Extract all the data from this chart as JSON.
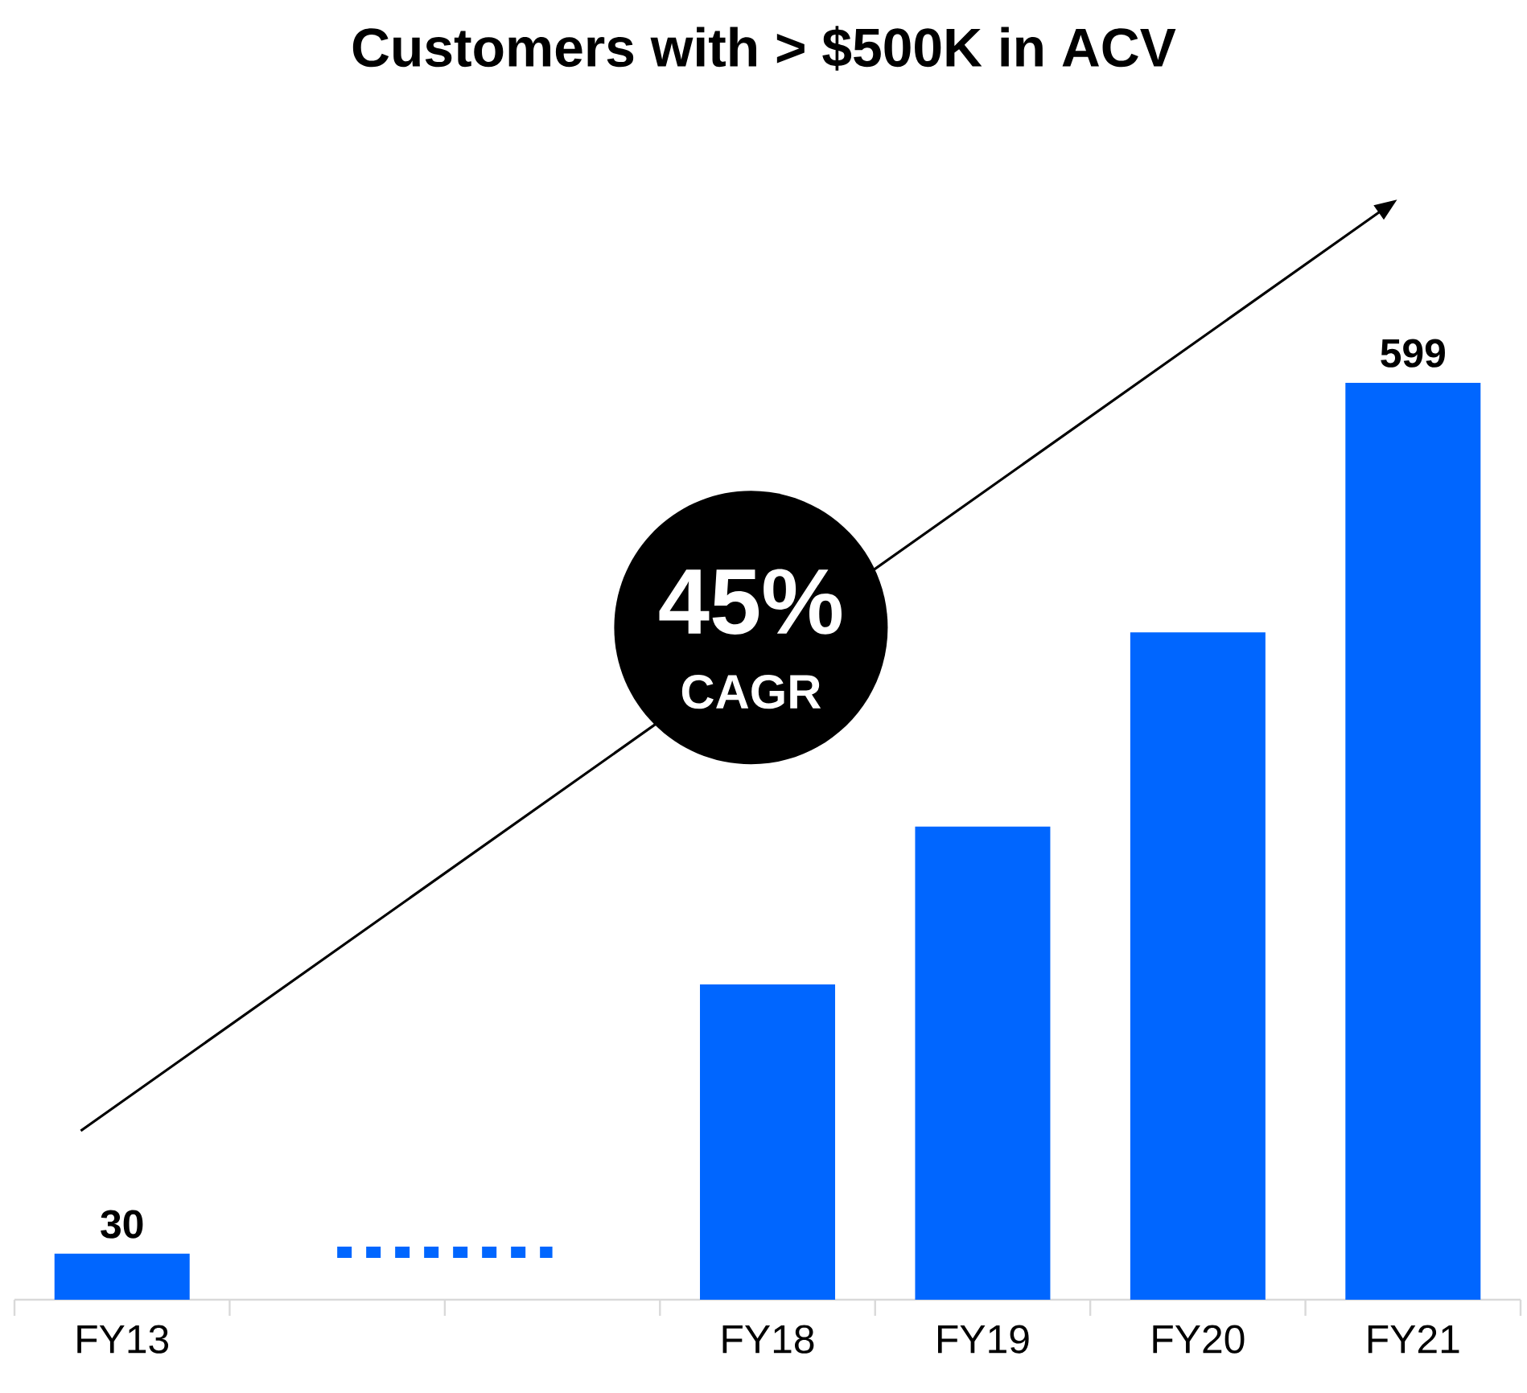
{
  "chart_data": {
    "type": "bar",
    "title": "Customers with > $500K in ACV",
    "categories": [
      "FY13",
      null,
      null,
      "FY18",
      "FY19",
      "FY20",
      "FY21"
    ],
    "series": [
      {
        "color": "#0066ff",
        "values": [
          30,
          null,
          null,
          206,
          309,
          436,
          599
        ],
        "value_labels": [
          "30",
          null,
          null,
          null,
          null,
          null,
          "599"
        ]
      },
      {
        "type": "line",
        "line_style": "dotted",
        "color": "#0066ff",
        "values": [
          null,
          31,
          31,
          null,
          null,
          null,
          null
        ]
      }
    ],
    "annotations": [
      "45%",
      "CAGR"
    ]
  }
}
